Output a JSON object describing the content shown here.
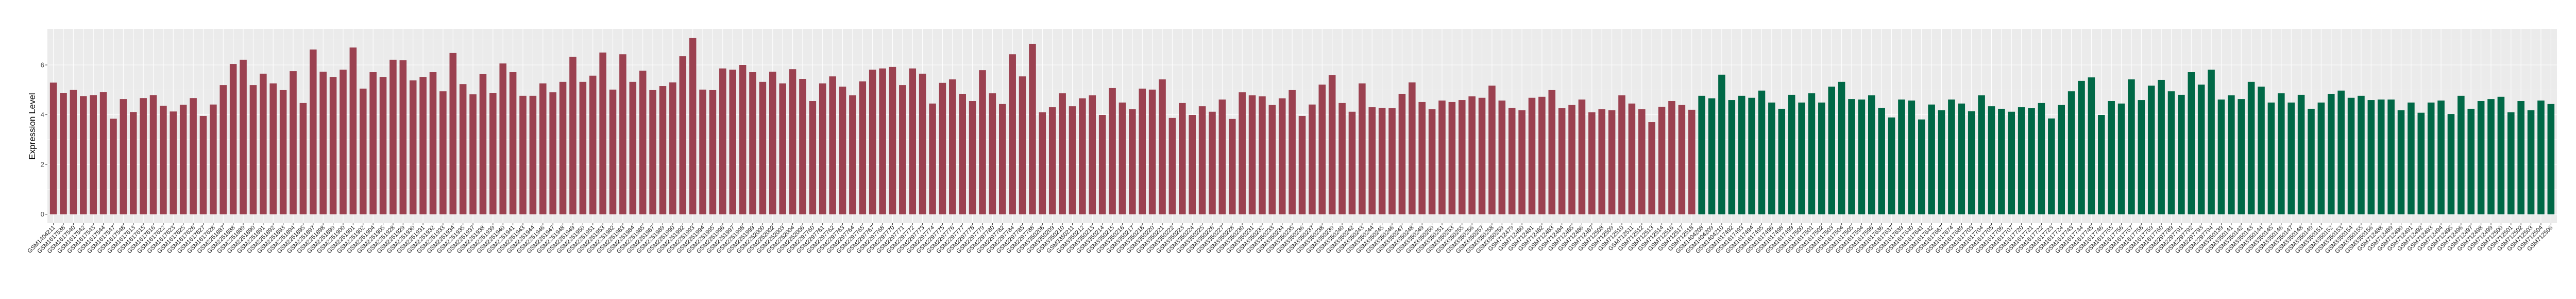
{
  "chart_data": {
    "type": "bar",
    "title": "",
    "xlabel": "",
    "ylabel": "Expression Level",
    "ylim": [
      -0.36,
      7.45
    ],
    "yticks": [
      "0",
      "2",
      "4",
      "6"
    ],
    "ytick_values": [
      0,
      2,
      4,
      6
    ],
    "grid": true,
    "legend": "none",
    "panel_background": "#ebebeb",
    "series": [
      {
        "color": "#9b4150",
        "categories": [
          "GSM1404211",
          "GSM1617538",
          "GSM1617540",
          "GSM1617542",
          "GSM1617543",
          "GSM1617544",
          "GSM1617547",
          "GSM1617548",
          "GSM1617613",
          "GSM1617615",
          "GSM1617616",
          "GSM1617622",
          "GSM1617623",
          "GSM1617625",
          "GSM1617626",
          "GSM1617627",
          "GSM1617628",
          "GSM2251887",
          "GSM2251888",
          "GSM2251889",
          "GSM2251890",
          "GSM2251891",
          "GSM2251892",
          "GSM2251893",
          "GSM2251894",
          "GSM2251895",
          "GSM2251897",
          "GSM2251898",
          "GSM2251899",
          "GSM2251900",
          "GSM2251901",
          "GSM2251902",
          "GSM2251904",
          "GSM2251905",
          "GSM2251928",
          "GSM2251929",
          "GSM2251930",
          "GSM2251931",
          "GSM2251932",
          "GSM2251933",
          "GSM2251934",
          "GSM2251935",
          "GSM2251937",
          "GSM2251938",
          "GSM2251939",
          "GSM2251940",
          "GSM2251941",
          "GSM2251943",
          "GSM2251944",
          "GSM2251946",
          "GSM2251947",
          "GSM2251948",
          "GSM2251949",
          "GSM2251950",
          "GSM2251951",
          "GSM2251953",
          "GSM2251982",
          "GSM2251983",
          "GSM2251984",
          "GSM2251985",
          "GSM2251987",
          "GSM2251989",
          "GSM2251990",
          "GSM2251992",
          "GSM2251993",
          "GSM2251994",
          "GSM2251995",
          "GSM2251996",
          "GSM2251997",
          "GSM2251998",
          "GSM2251999",
          "GSM2252000",
          "GSM2252002",
          "GSM2252003",
          "GSM2252004",
          "GSM2252006",
          "GSM2297760",
          "GSM2297761",
          "GSM2297762",
          "GSM2297763",
          "GSM2297764",
          "GSM2297765",
          "GSM2297767",
          "GSM2297768",
          "GSM2297770",
          "GSM2297771",
          "GSM2297772",
          "GSM2297773",
          "GSM2297774",
          "GSM2297775",
          "GSM2297776",
          "GSM2297777",
          "GSM2297778",
          "GSM2297779",
          "GSM2297780",
          "GSM2297782",
          "GSM2297784",
          "GSM2297785",
          "GSM2297788",
          "GSM3350208",
          "GSM3350209",
          "GSM3350210",
          "GSM3350211",
          "GSM3350212",
          "GSM3350213",
          "GSM3350214",
          "GSM3350215",
          "GSM3350216",
          "GSM3350217",
          "GSM3350218",
          "GSM3350220",
          "GSM3350221",
          "GSM3350222",
          "GSM3350223",
          "GSM3350224",
          "GSM3350225",
          "GSM3350226",
          "GSM3350227",
          "GSM3350228",
          "GSM3350230",
          "GSM3350231",
          "GSM3350232",
          "GSM3350233",
          "GSM3350234",
          "GSM3350235",
          "GSM3350236",
          "GSM3350237",
          "GSM3350238",
          "GSM3350239",
          "GSM3350240",
          "GSM3350242",
          "GSM3350243",
          "GSM3350244",
          "GSM3350245",
          "GSM3350246",
          "GSM3350247",
          "GSM3350248",
          "GSM3350249",
          "GSM3350250",
          "GSM3350251",
          "GSM3350253",
          "GSM3350255",
          "GSM3350256",
          "GSM3350257",
          "GSM3350258",
          "GSM3350259",
          "GSM712479",
          "GSM712480",
          "GSM712481",
          "GSM712482",
          "GSM712483",
          "GSM712484",
          "GSM712485",
          "GSM712486",
          "GSM712487",
          "GSM712508",
          "GSM712509",
          "GSM712510",
          "GSM712511",
          "GSM712512",
          "GSM712513",
          "GSM712514",
          "GSM712516",
          "GSM712517",
          "GSM712518"
        ],
        "values": [
          5.29,
          4.88,
          5.0,
          4.75,
          4.79,
          4.91,
          3.84,
          4.63,
          4.11,
          4.67,
          4.79,
          4.36,
          4.13,
          4.4,
          4.67,
          3.95,
          4.41,
          5.19,
          6.04,
          6.21,
          5.19,
          5.65,
          5.26,
          4.99,
          5.75,
          4.47,
          6.62,
          5.73,
          5.52,
          5.81,
          6.7,
          5.05,
          5.71,
          5.52,
          6.21,
          6.19,
          5.38,
          5.52,
          5.71,
          4.94,
          6.48,
          5.23,
          4.82,
          5.63,
          4.88,
          6.06,
          5.71,
          4.76,
          4.76,
          5.26,
          4.9,
          5.32,
          6.33,
          5.32,
          5.57,
          6.5,
          5.01,
          6.43,
          5.32,
          5.77,
          4.99,
          5.15,
          5.3,
          6.35,
          7.08,
          5.01,
          4.99,
          5.86,
          5.81,
          6.0,
          5.71,
          5.32,
          5.73,
          5.26,
          5.83,
          5.44,
          4.55,
          5.26,
          5.54,
          5.13,
          4.78,
          5.34,
          5.81,
          5.86,
          5.92,
          5.19,
          5.86,
          5.65,
          4.45,
          5.28,
          5.42,
          4.84,
          4.55,
          5.79,
          4.86,
          4.43,
          6.43,
          5.54,
          6.85,
          4.1,
          4.3,
          4.86,
          4.34,
          4.66,
          4.78,
          3.99,
          5.07,
          4.49,
          4.22,
          5.05,
          5.01,
          5.42,
          3.87,
          4.47,
          3.99,
          4.34,
          4.12,
          4.61,
          3.83,
          4.9,
          4.78,
          4.74,
          4.39,
          4.66,
          4.99,
          3.95,
          4.41,
          5.21,
          5.59,
          4.47,
          4.12,
          5.26,
          4.3,
          4.28,
          4.26,
          4.84,
          5.3,
          4.51,
          4.22,
          4.57,
          4.51,
          4.59,
          4.74,
          4.68,
          5.17,
          4.57,
          4.28,
          4.18,
          4.68,
          4.72,
          4.99,
          4.26,
          4.39,
          4.61,
          4.1,
          4.22,
          4.18,
          4.78,
          4.45,
          4.22,
          3.7,
          4.32,
          4.55,
          4.39,
          4.2
        ]
      },
      {
        "color": "#006846",
        "categories": [
          "GSM1404208",
          "GSM1404209",
          "GSM1404210",
          "GSM1617492",
          "GSM1617493",
          "GSM1617494",
          "GSM1617495",
          "GSM1617496",
          "GSM1617498",
          "GSM1617499",
          "GSM1617500",
          "GSM1617501",
          "GSM1617502",
          "GSM1617503",
          "GSM1617504",
          "GSM1617505",
          "GSM1617594",
          "GSM1617596",
          "GSM1617636",
          "GSM1617637",
          "GSM1617639",
          "GSM1617640",
          "GSM1617641",
          "GSM1617642",
          "GSM1617667",
          "GSM1617674",
          "GSM1617689",
          "GSM1617703",
          "GSM1617704",
          "GSM1617705",
          "GSM1617706",
          "GSM1617707",
          "GSM1617720",
          "GSM1617721",
          "GSM1617722",
          "GSM1617723",
          "GSM1617724",
          "GSM1617743",
          "GSM1617744",
          "GSM1617745",
          "GSM1617746",
          "GSM1617755",
          "GSM1617756",
          "GSM1617757",
          "GSM1617758",
          "GSM1617759",
          "GSM1617760",
          "GSM2297789",
          "GSM2297791",
          "GSM2297792",
          "GSM2297793",
          "GSM2297794",
          "GSM3350139",
          "GSM3350141",
          "GSM3350142",
          "GSM3350143",
          "GSM3350144",
          "GSM3350145",
          "GSM3350146",
          "GSM3350147",
          "GSM3350148",
          "GSM3350149",
          "GSM3350151",
          "GSM3350152",
          "GSM3350153",
          "GSM3350154",
          "GSM3350155",
          "GSM3350156",
          "GSM712488",
          "GSM712489",
          "GSM712490",
          "GSM712491",
          "GSM712492",
          "GSM712493",
          "GSM712494",
          "GSM712495",
          "GSM712496",
          "GSM712497",
          "GSM712498",
          "GSM712499",
          "GSM712500",
          "GSM712501",
          "GSM712502",
          "GSM712503",
          "GSM712504",
          "GSM712506"
        ],
        "values": [
          4.76,
          4.66,
          5.61,
          4.59,
          4.76,
          4.68,
          4.97,
          4.49,
          4.24,
          4.8,
          4.49,
          4.86,
          4.49,
          5.13,
          5.32,
          4.63,
          4.61,
          4.78,
          4.28,
          3.89,
          4.61,
          4.57,
          3.81,
          4.41,
          4.18,
          4.61,
          4.45,
          4.14,
          4.78,
          4.34,
          4.24,
          4.12,
          4.3,
          4.26,
          4.47,
          3.85,
          4.39,
          4.94,
          5.36,
          5.5,
          3.99,
          4.55,
          4.45,
          5.42,
          4.59,
          5.17,
          5.4,
          4.94,
          4.8,
          5.71,
          5.21,
          5.81,
          4.61,
          4.78,
          4.63,
          5.32,
          5.13,
          4.49,
          4.86,
          4.49,
          4.8,
          4.24,
          4.49,
          4.84,
          4.97,
          4.68,
          4.76,
          4.59,
          4.61,
          4.61,
          4.18,
          4.49,
          4.08,
          4.49,
          4.57,
          4.03,
          4.76,
          4.24,
          4.55,
          4.63,
          4.72,
          4.1,
          4.55,
          4.18,
          4.57,
          4.43
        ]
      }
    ]
  }
}
